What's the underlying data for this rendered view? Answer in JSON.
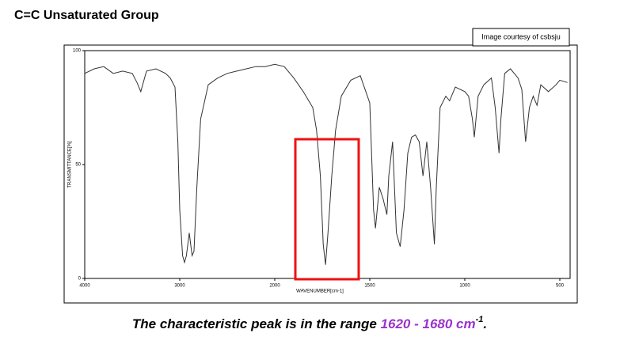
{
  "title": "C=C Unsaturated Group",
  "credit": "Image courtesy of csbsju",
  "caption": {
    "text": "The characteristic peak is in the range ",
    "highlight": "1620 - 1680 cm",
    "superscript": "-1",
    "end": "."
  },
  "chart_data": {
    "type": "line",
    "x_label": "WAVENUMBER[cm-1]",
    "y_label": "TRANSMITTANCE[%]",
    "x": [
      4000,
      3900,
      3800,
      3700,
      3600,
      3500,
      3450,
      3410,
      3350,
      3250,
      3150,
      3100,
      3050,
      3020,
      3000,
      2970,
      2950,
      2930,
      2900,
      2870,
      2850,
      2820,
      2780,
      2700,
      2600,
      2500,
      2400,
      2300,
      2200,
      2100,
      2000,
      1950,
      1900,
      1850,
      1800,
      1780,
      1760,
      1745,
      1733,
      1720,
      1700,
      1680,
      1650,
      1600,
      1550,
      1500,
      1480,
      1470,
      1450,
      1430,
      1410,
      1400,
      1380,
      1360,
      1340,
      1320,
      1300,
      1280,
      1260,
      1240,
      1220,
      1200,
      1180,
      1160,
      1150,
      1130,
      1100,
      1080,
      1050,
      1000,
      980,
      960,
      950,
      930,
      900,
      860,
      840,
      820,
      810,
      790,
      760,
      720,
      700,
      680,
      660,
      640,
      620,
      600,
      560,
      520,
      500,
      460
    ],
    "series": [
      {
        "color": "#333333",
        "values": [
          90,
          92,
          93,
          90,
          91,
          90,
          86,
          82,
          91,
          92,
          90,
          88,
          84,
          60,
          30,
          10,
          7,
          10,
          20,
          10,
          12,
          40,
          70,
          85,
          88,
          90,
          91,
          92,
          93,
          93,
          94,
          93,
          88,
          82,
          75,
          65,
          45,
          15,
          6,
          20,
          45,
          65,
          80,
          87,
          89,
          77,
          30,
          22,
          40,
          35,
          28,
          45,
          60,
          20,
          14,
          30,
          55,
          62,
          63,
          60,
          45,
          60,
          40,
          15,
          40,
          75,
          80,
          78,
          84,
          82,
          80,
          70,
          62,
          80,
          85,
          88,
          75,
          55,
          70,
          90,
          92,
          88,
          83,
          60,
          75,
          80,
          76,
          85,
          82,
          85,
          87,
          86
        ]
      }
    ],
    "xlim": [
      4000,
      420
    ],
    "xticks": [
      4000,
      3000,
      2000,
      1500,
      1000,
      500
    ],
    "ylim": [
      0,
      100
    ],
    "yticks": [
      0,
      50,
      100
    ]
  }
}
